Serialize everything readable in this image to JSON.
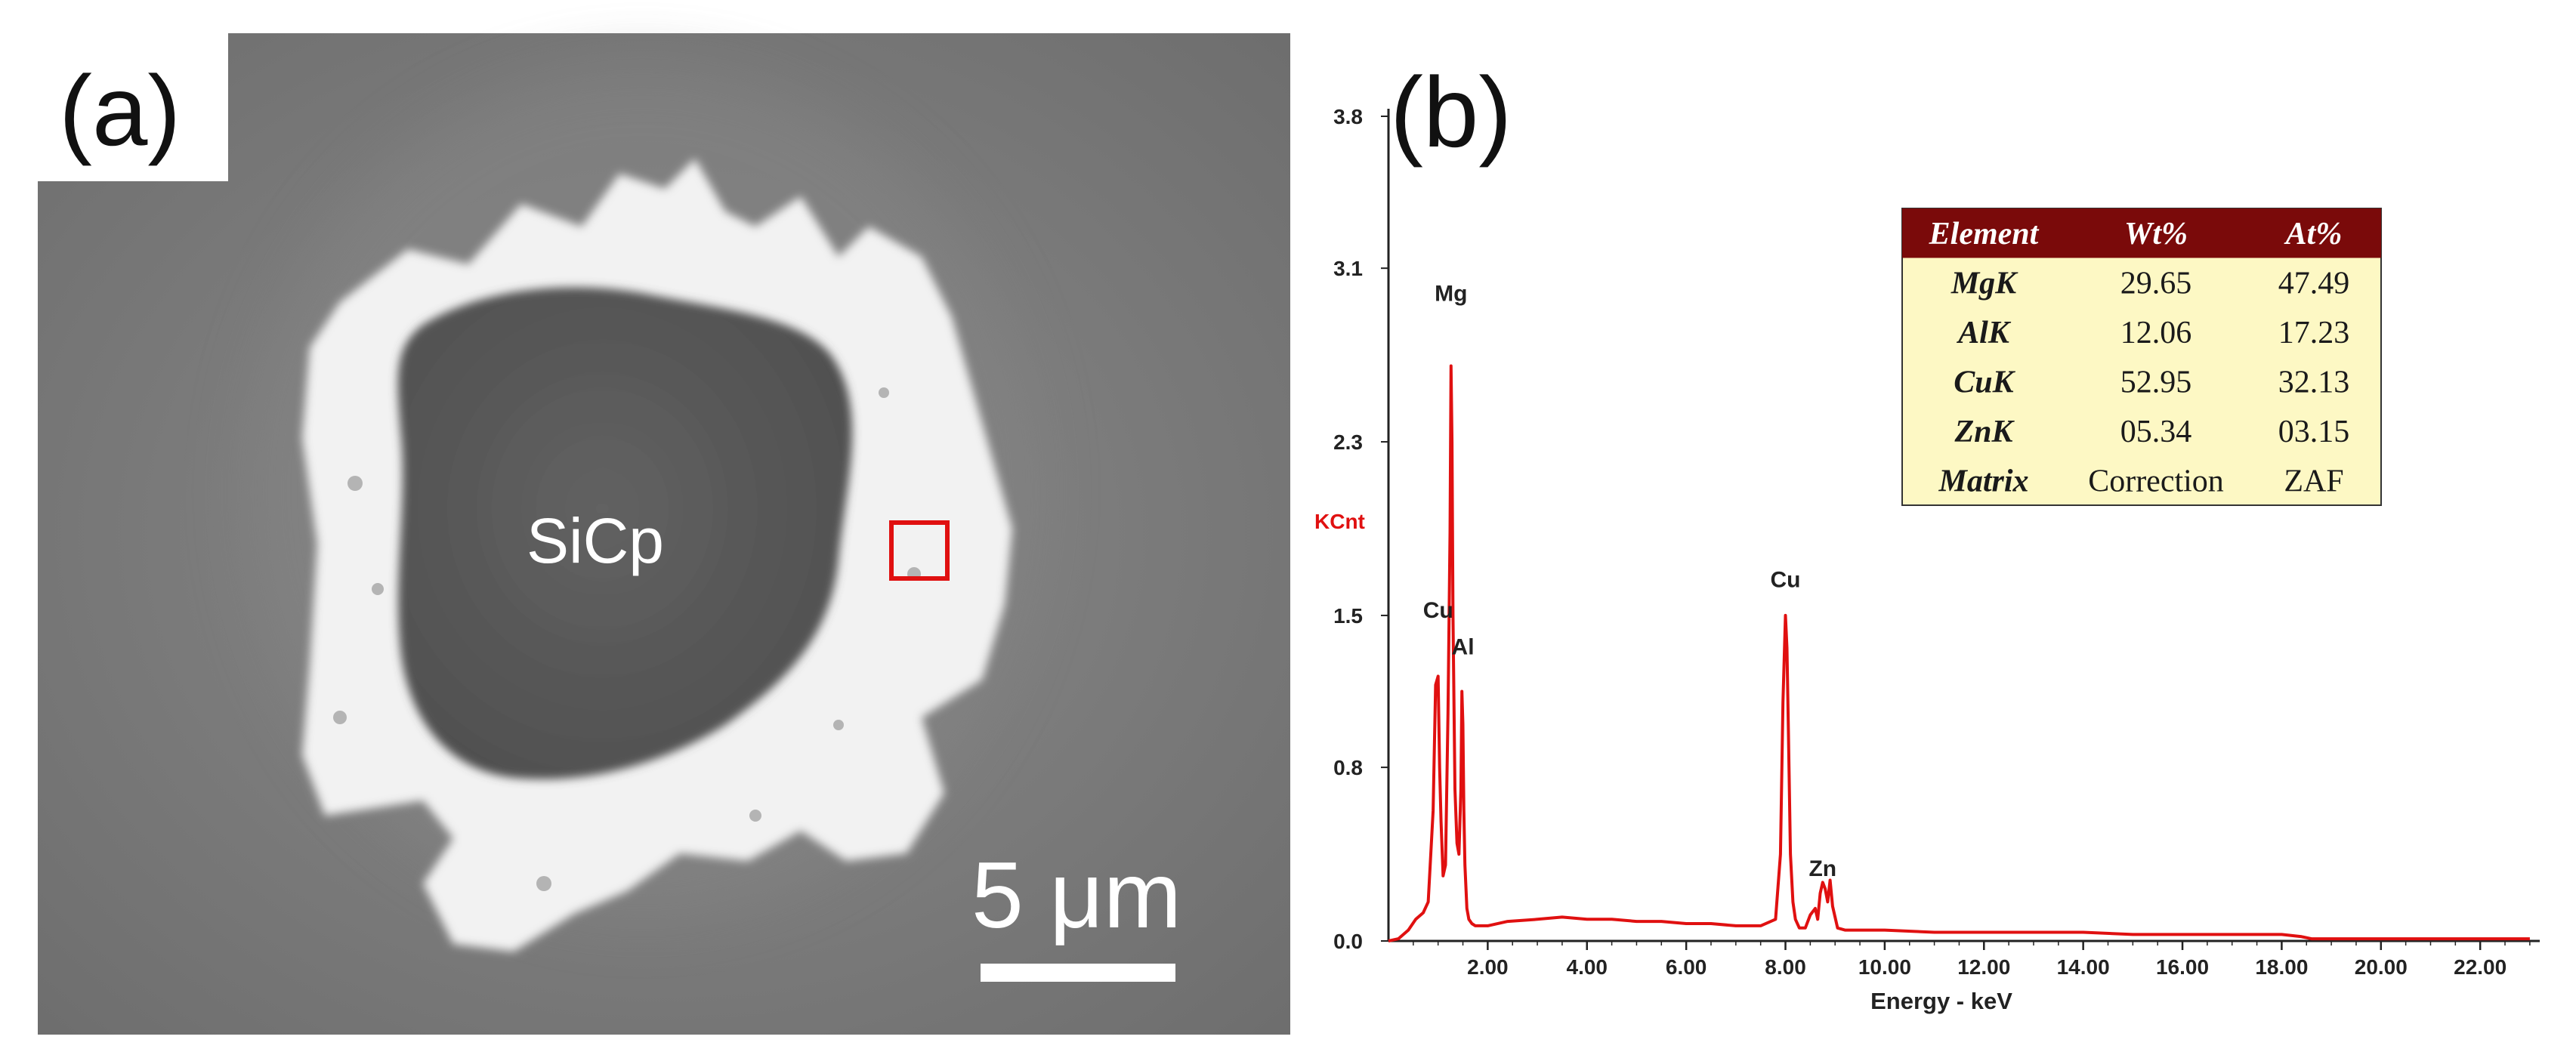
{
  "panel_a": {
    "label": "(a)",
    "particle_label": "SiCp",
    "scale_bar_label": "5 μm"
  },
  "panel_b": {
    "label": "(b)"
  },
  "colors": {
    "spectrum": "#e01010",
    "ylabel": "#e01010",
    "table_header_bg": "#7a0a0a",
    "table_header_text": "#ffffff",
    "table_body_bg": "#fdf8c4",
    "marker_box": "#e01010",
    "sem_background": "#7a7a7a",
    "phase_bright": "#f4f4f4",
    "particle_dark": "#5a5a5a"
  },
  "chart_data": {
    "type": "line",
    "title": "",
    "xlabel": "Energy - keV",
    "ylabel": "KCnt",
    "xlim": [
      0,
      23.2
    ],
    "ylim": [
      0,
      3.8
    ],
    "x_ticks": [
      2,
      4,
      6,
      8,
      10,
      12,
      14,
      16,
      18,
      20,
      22
    ],
    "x_tick_labels": [
      "2.00",
      "4.00",
      "6.00",
      "8.00",
      "10.00",
      "12.00",
      "14.00",
      "16.00",
      "18.00",
      "20.00",
      "22.00"
    ],
    "y_ticks": [
      0,
      0.8,
      1.5,
      2.3,
      3.1,
      3.8
    ],
    "y_tick_labels": [
      "0.0",
      "0.8",
      "1.5",
      "2.3",
      "3.1",
      "3.8"
    ],
    "series": [
      {
        "x": [
          0.0,
          0.2,
          0.4,
          0.55,
          0.7,
          0.8,
          0.9,
          0.95,
          1.0,
          1.03,
          1.06,
          1.1,
          1.15,
          1.2,
          1.24,
          1.26,
          1.28,
          1.3,
          1.34,
          1.38,
          1.42,
          1.46,
          1.48,
          1.5,
          1.52,
          1.54,
          1.58,
          1.62,
          1.68,
          1.75,
          1.85,
          2.0,
          2.4,
          3.0,
          3.5,
          4.0,
          4.5,
          5.0,
          5.5,
          6.0,
          6.5,
          7.0,
          7.5,
          7.8,
          7.9,
          7.95,
          8.0,
          8.03,
          8.06,
          8.1,
          8.15,
          8.2,
          8.28,
          8.4,
          8.5,
          8.6,
          8.65,
          8.7,
          8.75,
          8.8,
          8.85,
          8.9,
          8.95,
          9.05,
          9.2,
          9.5,
          10.0,
          11.0,
          12.0,
          13.0,
          14.0,
          15.0,
          16.0,
          17.0,
          18.0,
          18.4,
          18.6,
          19.0,
          20.0,
          21.0,
          22.0,
          23.0
        ],
        "values": [
          0.0,
          0.01,
          0.05,
          0.1,
          0.13,
          0.18,
          0.6,
          1.18,
          1.22,
          0.8,
          0.55,
          0.3,
          0.35,
          1.05,
          1.88,
          2.65,
          2.3,
          1.5,
          0.7,
          0.45,
          0.4,
          0.7,
          1.15,
          1.0,
          0.6,
          0.35,
          0.15,
          0.1,
          0.08,
          0.07,
          0.07,
          0.07,
          0.09,
          0.1,
          0.11,
          0.1,
          0.1,
          0.09,
          0.09,
          0.08,
          0.08,
          0.07,
          0.07,
          0.1,
          0.4,
          1.1,
          1.5,
          1.35,
          0.95,
          0.4,
          0.18,
          0.1,
          0.06,
          0.06,
          0.12,
          0.15,
          0.1,
          0.22,
          0.27,
          0.24,
          0.18,
          0.28,
          0.16,
          0.06,
          0.05,
          0.05,
          0.05,
          0.04,
          0.04,
          0.04,
          0.04,
          0.03,
          0.03,
          0.03,
          0.03,
          0.02,
          0.01,
          0.01,
          0.01,
          0.01,
          0.01,
          0.01
        ]
      }
    ],
    "annotations": [
      {
        "text": "Mg",
        "x": 1.26,
        "y": 2.95
      },
      {
        "text": "Cu",
        "x": 1.0,
        "y": 1.49
      },
      {
        "text": "Al",
        "x": 1.5,
        "y": 1.32
      },
      {
        "text": "Cu",
        "x": 8.0,
        "y": 1.63
      },
      {
        "text": "Zn",
        "x": 8.75,
        "y": 0.3
      }
    ],
    "table": {
      "headers": [
        "Element",
        "Wt%",
        "At%"
      ],
      "rows": [
        [
          "MgK",
          "29.65",
          "47.49"
        ],
        [
          "AlK",
          "12.06",
          "17.23"
        ],
        [
          "CuK",
          "52.95",
          "32.13"
        ],
        [
          "ZnK",
          "05.34",
          "03.15"
        ],
        [
          "Matrix",
          "Correction",
          "ZAF"
        ]
      ]
    }
  }
}
